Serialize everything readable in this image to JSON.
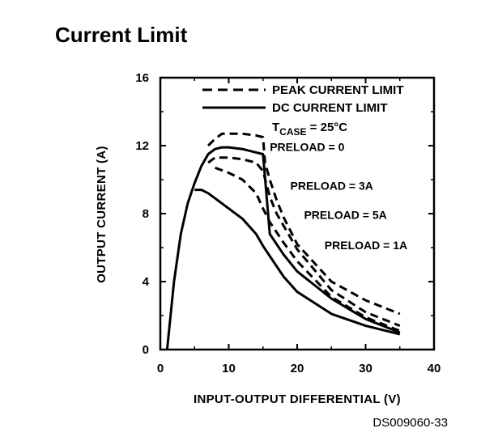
{
  "page": {
    "title": "Current Limit",
    "doc_code": "DS009060-33"
  },
  "chart_data": {
    "type": "line",
    "title": "Current Limit",
    "xlabel": "INPUT-OUTPUT DIFFERENTIAL (V)",
    "ylabel": "OUTPUT CURRENT (A)",
    "xlim": [
      0,
      40
    ],
    "ylim": [
      0,
      16
    ],
    "xticks": [
      0,
      10,
      20,
      30,
      40
    ],
    "yticks": [
      0,
      4,
      8,
      12,
      16
    ],
    "xtick_labels": [
      "0",
      "10",
      "20",
      "30",
      "40"
    ],
    "ytick_labels": [
      "0",
      "4",
      "8",
      "12",
      "16"
    ],
    "grid": false,
    "legend_position": "top-right",
    "legend": [
      {
        "label": "PEAK CURRENT LIMIT",
        "style": "dashed"
      },
      {
        "label": "DC CURRENT LIMIT",
        "style": "solid"
      }
    ],
    "condition": {
      "prefix": "T",
      "subscript": "CASE",
      "suffix": " = 25°C"
    },
    "series": [
      {
        "name": "PEAK CURRENT LIMIT",
        "label": "PRELOAD = 0",
        "style": "dashed",
        "x": [
          7,
          8,
          9,
          10,
          12,
          14,
          15,
          15.3,
          16,
          17,
          18,
          20,
          25,
          30,
          35
        ],
        "y": [
          12.0,
          12.4,
          12.7,
          12.7,
          12.7,
          12.6,
          12.5,
          11.0,
          10.0,
          8.8,
          7.8,
          6.2,
          4.0,
          2.9,
          2.1
        ]
      },
      {
        "name": "PEAK CURRENT LIMIT",
        "label": "PRELOAD = 3A",
        "style": "dashed",
        "x": [
          7,
          8,
          10,
          12,
          14,
          15,
          16,
          17,
          18,
          20,
          25,
          30,
          35
        ],
        "y": [
          11.0,
          11.3,
          11.3,
          11.2,
          11.0,
          10.5,
          9.0,
          8.0,
          7.3,
          5.9,
          3.5,
          2.2,
          1.4
        ]
      },
      {
        "name": "PEAK CURRENT LIMIT",
        "label": "PRELOAD = 5A",
        "style": "dashed",
        "x": [
          8,
          10,
          12,
          14,
          15,
          16,
          18,
          20,
          25,
          30,
          35
        ],
        "y": [
          10.7,
          10.4,
          10.0,
          9.2,
          8.3,
          7.5,
          6.3,
          5.2,
          3.1,
          1.9,
          1.1
        ]
      },
      {
        "name": "DC CURRENT LIMIT",
        "label": "PRELOAD = 0",
        "style": "solid",
        "x": [
          1,
          2,
          3,
          4,
          5,
          6,
          7,
          8,
          9,
          10,
          12,
          14,
          15,
          16,
          18,
          20,
          25,
          30,
          35
        ],
        "y": [
          0,
          4.0,
          6.8,
          8.6,
          9.8,
          10.8,
          11.5,
          11.8,
          11.9,
          11.9,
          11.8,
          11.6,
          11.5,
          6.8,
          5.6,
          4.6,
          3.0,
          1.8,
          1.0
        ]
      },
      {
        "name": "DC CURRENT LIMIT",
        "label": "PRELOAD = 1A",
        "style": "solid",
        "x": [
          5,
          6,
          7,
          8,
          10,
          12,
          14,
          15,
          16,
          18,
          20,
          25,
          30,
          35
        ],
        "y": [
          9.4,
          9.4,
          9.2,
          8.9,
          8.3,
          7.7,
          6.8,
          6.1,
          5.5,
          4.3,
          3.4,
          2.1,
          1.4,
          0.9
        ]
      }
    ],
    "annotations": [
      {
        "text": "PRELOAD = 0",
        "x": 16,
        "y": 11.7
      },
      {
        "text": "PRELOAD = 3A",
        "x": 19,
        "y": 9.4
      },
      {
        "text": "PRELOAD = 5A",
        "x": 21,
        "y": 7.7
      },
      {
        "text": "PRELOAD = 1A",
        "x": 24,
        "y": 5.9
      }
    ]
  }
}
